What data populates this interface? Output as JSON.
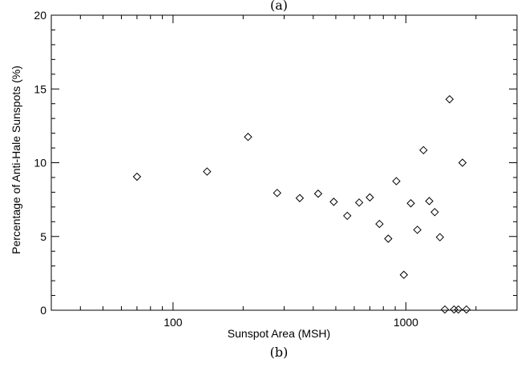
{
  "top_caption": "(a)",
  "caption": "(b)",
  "chart_data": {
    "type": "scatter",
    "xlabel": "Sunspot Area (MSH)",
    "ylabel": "Percentage of Anti-Hale Sunspots (%)",
    "x_scale": "log",
    "xlim": [
      30,
      3000
    ],
    "ylim": [
      0,
      20
    ],
    "x_ticks": [
      100,
      1000
    ],
    "x_tick_labels": [
      "100",
      "1000"
    ],
    "y_ticks": [
      0,
      5,
      10,
      15,
      20
    ],
    "y_tick_labels": [
      "0",
      "5",
      "10",
      "15",
      "20"
    ],
    "marker": "diamond-open",
    "grid": false,
    "series": [
      {
        "points": [
          [
            70,
            9.05
          ],
          [
            140,
            9.4
          ],
          [
            210,
            11.75
          ],
          [
            280,
            7.95
          ],
          [
            350,
            7.6
          ],
          [
            420,
            7.9
          ],
          [
            490,
            7.35
          ],
          [
            560,
            6.4
          ],
          [
            630,
            7.3
          ],
          [
            700,
            7.65
          ],
          [
            770,
            5.85
          ],
          [
            840,
            4.85
          ],
          [
            910,
            8.75
          ],
          [
            980,
            2.4
          ],
          [
            1050,
            7.25
          ],
          [
            1120,
            5.45
          ],
          [
            1190,
            10.85
          ],
          [
            1260,
            7.4
          ],
          [
            1330,
            6.65
          ],
          [
            1400,
            4.95
          ],
          [
            1470,
            0.05
          ],
          [
            1540,
            14.3
          ],
          [
            1610,
            0.05
          ],
          [
            1680,
            0.05
          ],
          [
            1750,
            10.0
          ],
          [
            1820,
            0.05
          ]
        ]
      }
    ]
  }
}
